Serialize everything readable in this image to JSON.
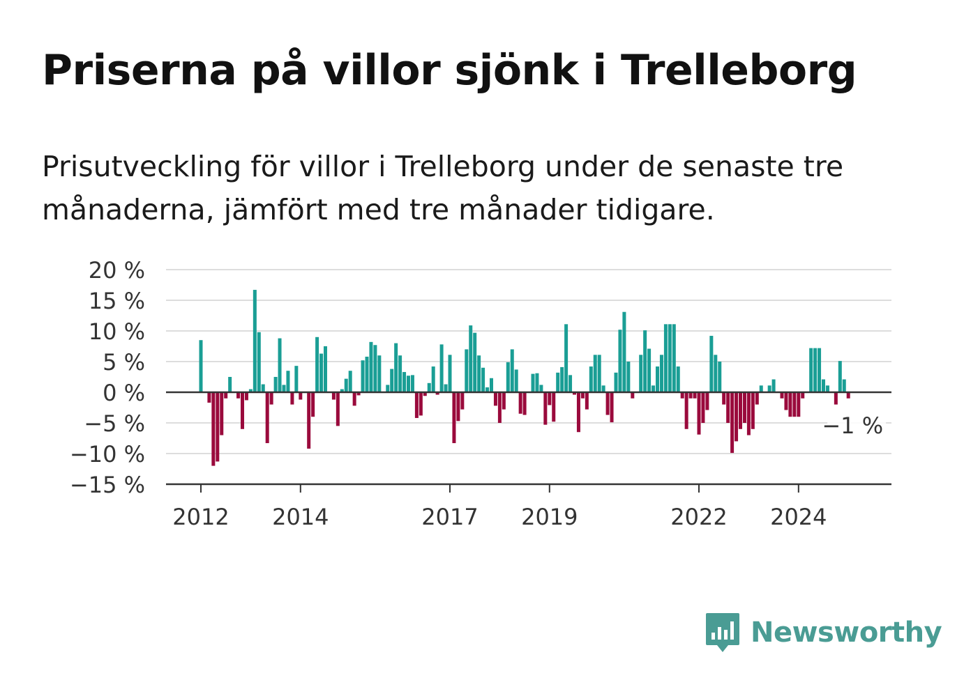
{
  "header": {
    "title": "Priserna på villor sjönk i Trelleborg",
    "subtitle": "Prisutveckling för villor i Trelleborg under de senaste tre månaderna, jämfört med tre månader tidigare."
  },
  "brand": {
    "name": "Newsworthy",
    "color": "#4a9c94",
    "icon": "bar-chart-speech-bubble-icon"
  },
  "colors": {
    "positive": "#1a9e95",
    "negative": "#9a0a3c",
    "axis": "#333333",
    "grid": "#dddddd"
  },
  "chart_data": {
    "type": "bar",
    "x_start": "2012-01",
    "x_end": "2025-03",
    "xtick_labels": [
      "2012",
      "2014",
      "2017",
      "2019",
      "2022",
      "2024"
    ],
    "xticks": [
      "2012-01",
      "2014-01",
      "2017-01",
      "2019-01",
      "2022-01",
      "2024-01"
    ],
    "ylim": [
      -15,
      20
    ],
    "yticks": [
      -15,
      -10,
      -5,
      0,
      5,
      10,
      15,
      20
    ],
    "ytick_labels": [
      "−15 %",
      "−10 %",
      "−5 %",
      "0 %",
      "5 %",
      "10 %",
      "15 %",
      "20 %"
    ],
    "grid": true,
    "annotation": {
      "text": "−1 %",
      "month": "2025-03",
      "value": -1
    },
    "series": [
      {
        "values": [
          8.5,
          0,
          -1.7,
          -12,
          -11.3,
          -7,
          -1,
          2.5,
          0,
          -1,
          -6,
          -1.3,
          0.5,
          16.7,
          9.8,
          1.3,
          -8.3,
          -2,
          2.5,
          8.8,
          1.2,
          3.5,
          -2,
          4.3,
          -1.2,
          0,
          -9.2,
          -4,
          9,
          6.3,
          7.5,
          0,
          -1.2,
          -5.5,
          0.5,
          2.2,
          3.5,
          -2.2,
          -0.5,
          5.2,
          5.8,
          8.2,
          7.7,
          6,
          0,
          1.2,
          3.8,
          8,
          6,
          3.3,
          2.7,
          2.8,
          -4.2,
          -3.8,
          -0.6,
          1.5,
          4.2,
          -0.4,
          7.8,
          1.3,
          6.1,
          -8.3,
          -4.7,
          -2.8,
          7,
          10.9,
          9.7,
          6,
          4,
          0.8,
          2.3,
          -2.2,
          -5,
          -2.8,
          4.9,
          7,
          3.7,
          -3.5,
          -3.7,
          0,
          3,
          3.1,
          1.2,
          -5.3,
          -2.1,
          -4.8,
          3.2,
          4.1,
          11.1,
          2.8,
          -0.4,
          -6.5,
          -1,
          -2.8,
          4.2,
          6.1,
          6.1,
          1.1,
          -3.7,
          -4.9,
          3.2,
          10.2,
          13.1,
          5,
          -1,
          0,
          6.1,
          10.1,
          7.1,
          1.1,
          4.2,
          6.1,
          11.1,
          11.1,
          11.1,
          4.2,
          -1,
          -6,
          -1,
          -1,
          -6.9,
          -5,
          -2.9,
          9.2,
          6.1,
          5,
          -2,
          -5,
          -9.9,
          -8,
          -6,
          -5,
          -7,
          -6,
          -2,
          1.1,
          0,
          1.1,
          2.1,
          0,
          -1,
          -2.9,
          -4,
          -4,
          -4,
          -1,
          0,
          7.2,
          7.2,
          7.2,
          2.1,
          1.1,
          0,
          -2,
          5.1,
          2.1,
          -1
        ]
      }
    ]
  }
}
